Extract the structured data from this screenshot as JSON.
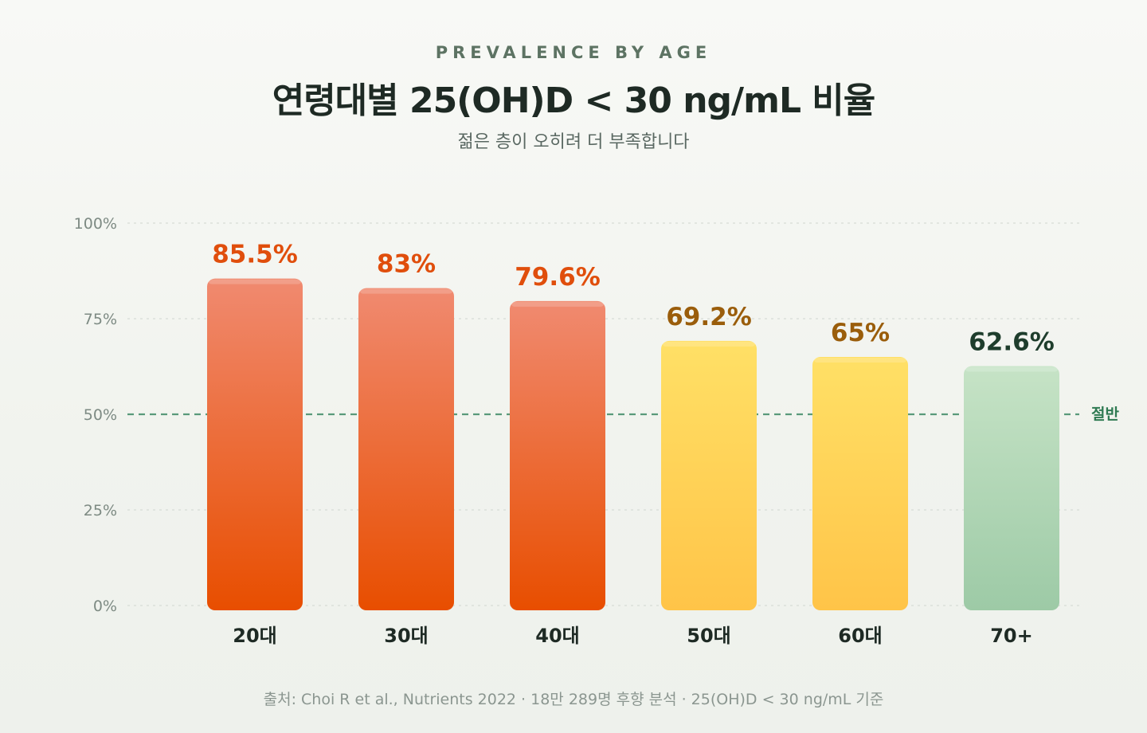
{
  "header": {
    "eyebrow": "PREVALENCE BY AGE",
    "title": "연령대별 25(OH)D < 30 ng/mL 비율",
    "subtitle": "젊은 층이 오히려 더 부족합니다"
  },
  "footnote": "출처: Choi R et al., Nutrients 2022 · 18만 289명 후향 분석 · 25(OH)D < 30 ng/mL 기준",
  "chart_data": {
    "type": "bar",
    "categories": [
      "20대",
      "30대",
      "40대",
      "50대",
      "60대",
      "70+"
    ],
    "values": [
      85.5,
      83,
      79.6,
      69.2,
      65,
      62.6
    ],
    "value_labels": [
      "85.5%",
      "83%",
      "79.6%",
      "69.2%",
      "65%",
      "62.6%"
    ],
    "ylim": [
      0,
      100
    ],
    "yticks": [
      0,
      25,
      50,
      75,
      100
    ],
    "ytick_labels": [
      "0%",
      "25%",
      "50%",
      "75%",
      "100%"
    ],
    "reference_line": {
      "value": 50,
      "label": "절반"
    },
    "grid": true,
    "colors": {
      "high_top": "#f08a70",
      "high_bottom": "#e84e00",
      "high_label": "#e04e0c",
      "mid_top": "#ffe066",
      "mid_bottom": "#ffc448",
      "mid_label": "#9a5d0b",
      "low_top": "#c6e3c6",
      "low_bottom": "#9dcaa6",
      "low_label": "#1e3d2c",
      "reference": "#5a9a7a",
      "reference_label": "#2e7a52",
      "grid": "#d6dcd6",
      "tick": "#7d8a83",
      "category": "#1e2a24"
    },
    "bar_groups": [
      "high",
      "high",
      "high",
      "mid",
      "mid",
      "low"
    ]
  }
}
